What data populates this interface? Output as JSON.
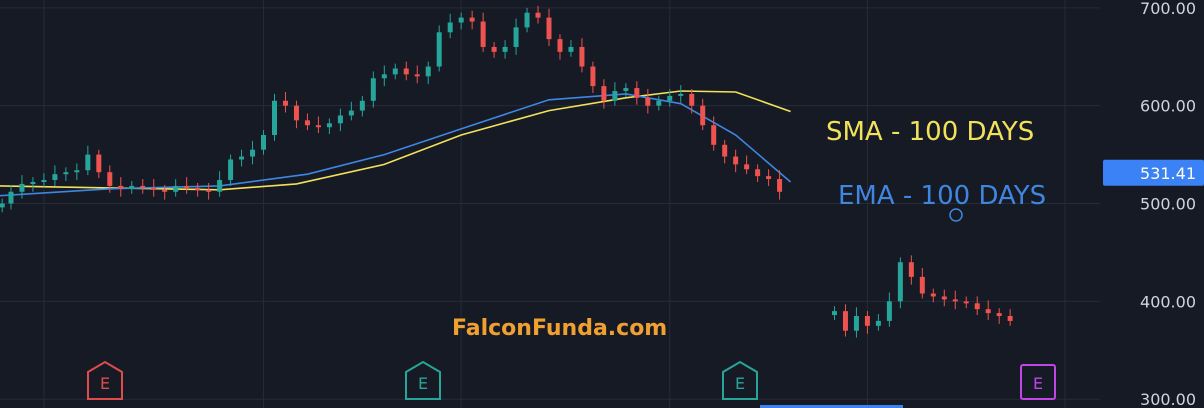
{
  "chart_data": {
    "type": "candlestick",
    "ylim": [
      291,
      708
    ],
    "y_ticks": [
      {
        "value": 700,
        "label": "700.00"
      },
      {
        "value": 600,
        "label": "600.00"
      },
      {
        "value": 500,
        "label": "500.00"
      },
      {
        "value": 400,
        "label": "400.00"
      },
      {
        "value": 300,
        "label": "300.00"
      }
    ],
    "last_price": {
      "value": 531.41,
      "label": "531.41"
    },
    "grid": true,
    "series": [
      {
        "name": "SMA - 100 DAYS",
        "kind": "line",
        "color": "#f2e25a",
        "points": [
          [
            0,
            518
          ],
          [
            0.1,
            516
          ],
          [
            0.2,
            514
          ],
          [
            0.27,
            520
          ],
          [
            0.35,
            540
          ],
          [
            0.42,
            570
          ],
          [
            0.5,
            595
          ],
          [
            0.57,
            608
          ],
          [
            0.62,
            615
          ],
          [
            0.67,
            614
          ],
          [
            0.72,
            594
          ]
        ]
      },
      {
        "name": "EMA - 100 DAYS",
        "kind": "line",
        "color": "#3f86e0",
        "points": [
          [
            0,
            508
          ],
          [
            0.1,
            515
          ],
          [
            0.2,
            518
          ],
          [
            0.28,
            530
          ],
          [
            0.35,
            550
          ],
          [
            0.43,
            580
          ],
          [
            0.5,
            606
          ],
          [
            0.57,
            612
          ],
          [
            0.62,
            602
          ],
          [
            0.67,
            570
          ],
          [
            0.72,
            522
          ]
        ]
      },
      {
        "name": "price",
        "kind": "candles",
        "up_color": "#26a69a",
        "down_color": "#ef5350",
        "points": [
          [
            0.002,
            500
          ],
          [
            0.01,
            512
          ],
          [
            0.02,
            520
          ],
          [
            0.03,
            522
          ],
          [
            0.04,
            524
          ],
          [
            0.05,
            530
          ],
          [
            0.06,
            532
          ],
          [
            0.07,
            534
          ],
          [
            0.08,
            550
          ],
          [
            0.09,
            532
          ],
          [
            0.1,
            518
          ],
          [
            0.11,
            515
          ],
          [
            0.12,
            518
          ],
          [
            0.13,
            516
          ],
          [
            0.14,
            514
          ],
          [
            0.15,
            512
          ],
          [
            0.16,
            518
          ],
          [
            0.17,
            516
          ],
          [
            0.18,
            514
          ],
          [
            0.19,
            512
          ],
          [
            0.2,
            524
          ],
          [
            0.21,
            545
          ],
          [
            0.22,
            548
          ],
          [
            0.23,
            555
          ],
          [
            0.24,
            570
          ],
          [
            0.25,
            605
          ],
          [
            0.26,
            600
          ],
          [
            0.27,
            585
          ],
          [
            0.28,
            580
          ],
          [
            0.29,
            578
          ],
          [
            0.3,
            582
          ],
          [
            0.31,
            590
          ],
          [
            0.32,
            595
          ],
          [
            0.33,
            605
          ],
          [
            0.34,
            628
          ],
          [
            0.35,
            632
          ],
          [
            0.36,
            638
          ],
          [
            0.37,
            632
          ],
          [
            0.38,
            630
          ],
          [
            0.39,
            640
          ],
          [
            0.4,
            675
          ],
          [
            0.41,
            685
          ],
          [
            0.42,
            690
          ],
          [
            0.43,
            686
          ],
          [
            0.44,
            660
          ],
          [
            0.45,
            655
          ],
          [
            0.46,
            660
          ],
          [
            0.47,
            680
          ],
          [
            0.48,
            695
          ],
          [
            0.49,
            690
          ],
          [
            0.5,
            668
          ],
          [
            0.51,
            655
          ],
          [
            0.52,
            660
          ],
          [
            0.53,
            640
          ],
          [
            0.54,
            620
          ],
          [
            0.55,
            605
          ],
          [
            0.56,
            615
          ],
          [
            0.57,
            618
          ],
          [
            0.58,
            608
          ],
          [
            0.59,
            600
          ],
          [
            0.6,
            605
          ],
          [
            0.61,
            610
          ],
          [
            0.62,
            612
          ],
          [
            0.63,
            600
          ],
          [
            0.64,
            580
          ],
          [
            0.65,
            560
          ],
          [
            0.66,
            548
          ],
          [
            0.67,
            540
          ],
          [
            0.68,
            535
          ],
          [
            0.69,
            528
          ],
          [
            0.7,
            525
          ],
          [
            0.71,
            512
          ],
          [
            0.76,
            390
          ],
          [
            0.77,
            370
          ],
          [
            0.78,
            385
          ],
          [
            0.79,
            375
          ],
          [
            0.8,
            380
          ],
          [
            0.81,
            400
          ],
          [
            0.82,
            440
          ],
          [
            0.83,
            425
          ],
          [
            0.84,
            408
          ],
          [
            0.85,
            405
          ],
          [
            0.86,
            402
          ],
          [
            0.87,
            400
          ],
          [
            0.88,
            398
          ],
          [
            0.89,
            392
          ],
          [
            0.9,
            388
          ],
          [
            0.91,
            385
          ],
          [
            0.92,
            380
          ]
        ]
      }
    ],
    "annotations": [
      {
        "text": "SMA  - 100 DAYS",
        "color": "#f2e25a"
      },
      {
        "text": "EMA  - 100 DAYS",
        "color": "#3f86e0"
      }
    ],
    "watermark": "FalconFunda.com",
    "earnings_markers": [
      {
        "letter": "E",
        "color": "#e04b4b"
      },
      {
        "letter": "E",
        "color": "#26a69a"
      },
      {
        "letter": "E",
        "color": "#26a69a"
      },
      {
        "letter": "E",
        "color": "#c245e8"
      }
    ]
  }
}
